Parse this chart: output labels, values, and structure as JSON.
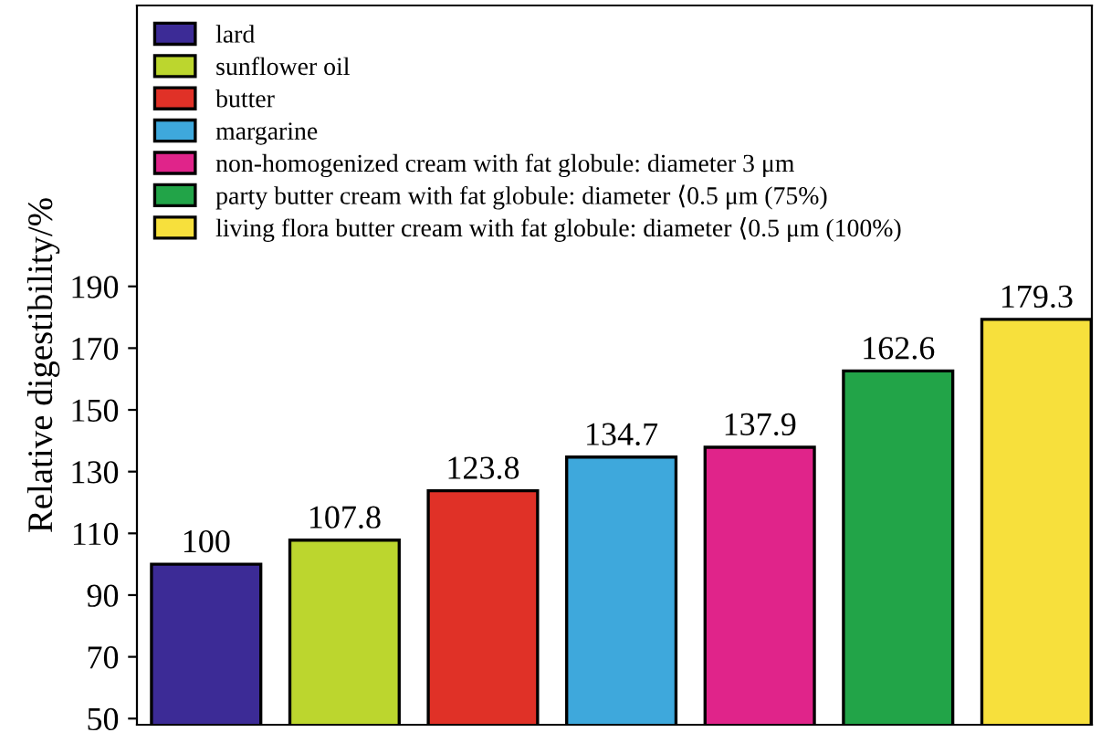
{
  "chart_data": {
    "type": "bar",
    "ylabel": "Relative digestibility/%",
    "categories": [
      null,
      null,
      null,
      null,
      null,
      null,
      null
    ],
    "series": [
      {
        "name": "lard",
        "color": "#3c2b96",
        "values": [
          100,
          null,
          null,
          null,
          null,
          null,
          null
        ]
      },
      {
        "name": "sunflower oil",
        "color": "#bcd62e",
        "values": [
          null,
          107.8,
          null,
          null,
          null,
          null,
          null
        ]
      },
      {
        "name": "butter",
        "color": "#e03127",
        "values": [
          null,
          null,
          123.8,
          null,
          null,
          null,
          null
        ]
      },
      {
        "name": "margarine",
        "color": "#3ea8dc",
        "values": [
          null,
          null,
          null,
          134.7,
          null,
          null,
          null
        ]
      },
      {
        "name": "non-homogenized cream with fat globule: diameter 3 μm",
        "color": "#e0248a",
        "values": [
          null,
          null,
          null,
          null,
          137.9,
          null,
          null
        ]
      },
      {
        "name": "party butter cream with fat globule: diameter ⟨0.5 μm (75%)",
        "color": "#22a448",
        "values": [
          null,
          null,
          null,
          null,
          null,
          162.6,
          null
        ]
      },
      {
        "name": "living flora butter cream with fat globule: diameter ⟨0.5 μm (100%)",
        "color": "#f7e03c",
        "values": [
          null,
          null,
          null,
          null,
          null,
          null,
          179.3
        ]
      }
    ],
    "ylim": [
      48,
      281
    ],
    "yticks": [
      50,
      70,
      90,
      110,
      130,
      150,
      170,
      190
    ],
    "tick_labels": "y",
    "data_labels": true,
    "legend": "top left",
    "grid": false
  }
}
